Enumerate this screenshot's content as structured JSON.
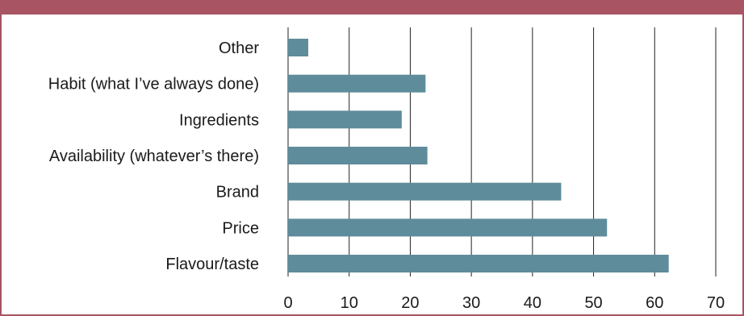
{
  "colors": {
    "accent": "#a85462",
    "bar": "#5e8c9b",
    "grid": "#222222"
  },
  "chart_data": {
    "type": "bar",
    "orientation": "horizontal",
    "title": "",
    "xlabel": "",
    "ylabel": "",
    "categories": [
      "Other",
      "Habit (what I’ve always done)",
      "Ingredients",
      "Availability (whatever’s there)",
      "Brand",
      "Price",
      "Flavour/taste"
    ],
    "values": [
      3.3,
      22.5,
      18.6,
      22.8,
      44.7,
      52.2,
      62.3
    ],
    "xlim": [
      0,
      70
    ],
    "xticks": [
      0,
      10,
      20,
      30,
      40,
      50,
      60,
      70
    ],
    "grid": true,
    "legend": "none"
  }
}
